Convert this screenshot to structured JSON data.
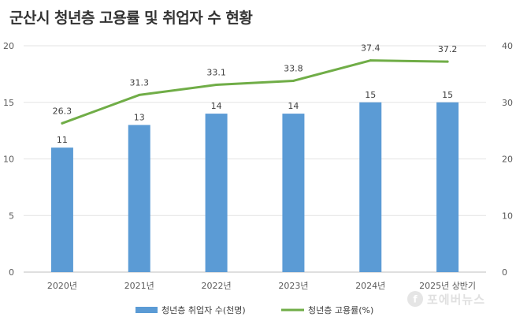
{
  "chart_data": {
    "type": "bar",
    "title": "군산시 청년층 고용률 및 취업자 수 현황",
    "categories": [
      "2020년",
      "2021년",
      "2022년",
      "2023년",
      "2024년",
      "2025년 상반기"
    ],
    "y_left": {
      "ylim": [
        0,
        20
      ],
      "ticks": [
        "0",
        "5",
        "10",
        "15",
        "20"
      ]
    },
    "y_right": {
      "ylim": [
        0,
        40
      ],
      "ticks": [
        "0",
        "10",
        "20",
        "30",
        "40"
      ]
    },
    "series": [
      {
        "name": "청년층 취업자 수(천명)",
        "type": "bar",
        "axis": "left",
        "color": "#5b9bd5",
        "values": [
          11,
          13,
          14,
          14,
          15,
          15
        ],
        "labels": [
          "11",
          "13",
          "14",
          "14",
          "15",
          "15"
        ]
      },
      {
        "name": "청년층 고용률(%)",
        "type": "line",
        "axis": "right",
        "color": "#70ad47",
        "values": [
          26.3,
          31.3,
          33.1,
          33.8,
          37.4,
          37.2
        ],
        "labels": [
          "26.3",
          "31.3",
          "33.1",
          "33.8",
          "37.4",
          "37.2"
        ]
      }
    ],
    "grid": true,
    "legend_position": "bottom"
  },
  "watermark": {
    "text": "포에버뉴스",
    "icon": "forever-news-logo-icon"
  }
}
